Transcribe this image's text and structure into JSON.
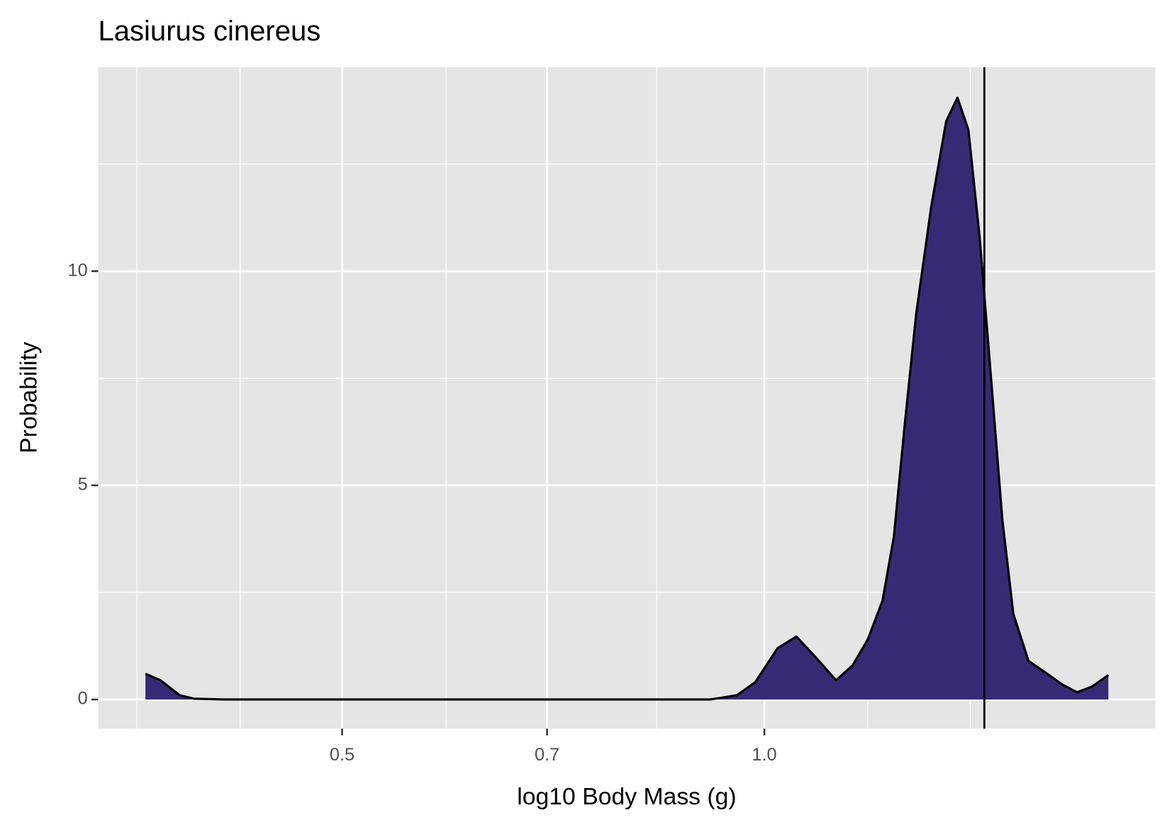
{
  "chart_data": {
    "type": "density",
    "title": "Lasiurus cinereus",
    "x_label": "log10 Body Mass (g)",
    "y_label": "Probability",
    "x_log": true,
    "xlim": [
      0.335,
      1.9
    ],
    "xticks": [
      0.5,
      0.7,
      {
        "value": 1.0,
        "label": "1.0"
      }
    ],
    "x_minor_ticks": [
      0.357,
      0.423,
      0.593,
      0.838,
      1.185,
      1.402
    ],
    "ylim": [
      -0.68,
      14.76
    ],
    "yticks": [
      0,
      5,
      10
    ],
    "y_minor_ticks": [
      2.5,
      7.5,
      12.5
    ],
    "grid": true,
    "color": "#372a75",
    "x": [
      0.362,
      0.371,
      0.383,
      0.392,
      0.412,
      0.915,
      0.956,
      0.985,
      1.022,
      1.054,
      1.087,
      1.125,
      1.156,
      1.185,
      1.214,
      1.237,
      1.26,
      1.283,
      1.315,
      1.348,
      1.373,
      1.398,
      1.424,
      1.451,
      1.478,
      1.505,
      1.543,
      1.591,
      1.631,
      1.671,
      1.712,
      1.759
    ],
    "values": [
      0.6,
      0.45,
      0.1,
      0.02,
      0,
      0,
      0.1,
      0.4,
      1.2,
      1.47,
      1.0,
      0.45,
      0.8,
      1.4,
      2.3,
      3.8,
      6.5,
      9.0,
      11.5,
      13.5,
      14.05,
      13.3,
      10.8,
      7.5,
      4.2,
      2.0,
      0.9,
      0.6,
      0.35,
      0.17,
      0.3,
      0.57
    ],
    "vline": 1.435
  }
}
